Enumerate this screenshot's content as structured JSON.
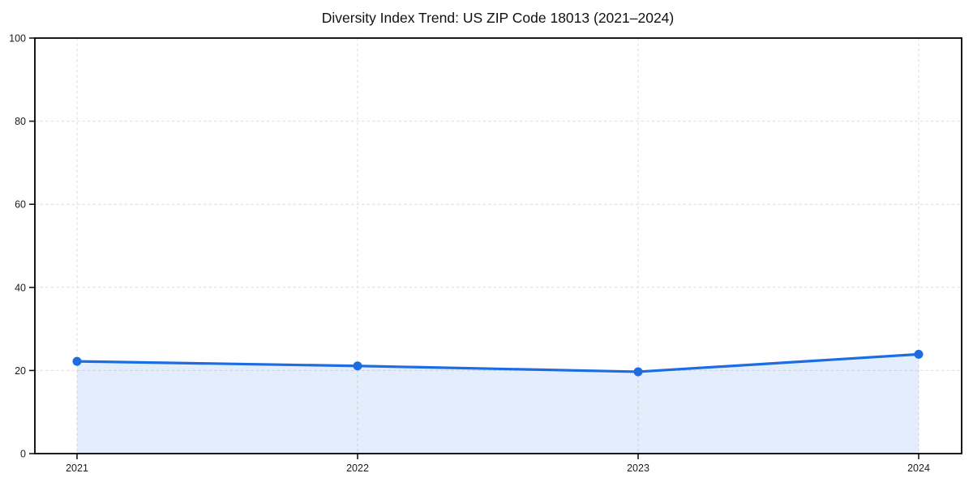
{
  "chart_data": {
    "type": "line",
    "title": "Diversity Index Trend: US ZIP Code 18013 (2021–2024)",
    "x": [
      2021,
      2022,
      2023,
      2024
    ],
    "x_tick_labels": [
      "2021",
      "2022",
      "2023",
      "2024"
    ],
    "series": [
      {
        "name": "Diversity Index",
        "values": [
          22.2,
          21.1,
          19.7,
          23.9
        ]
      }
    ],
    "xlabel": "",
    "ylabel": "",
    "ylim": [
      0,
      100
    ],
    "y_ticks": [
      0,
      20,
      40,
      60,
      80,
      100
    ],
    "y_tick_labels": [
      "0",
      "20",
      "40",
      "60",
      "80",
      "100"
    ],
    "grid": "dashed",
    "legend_position": "none",
    "area_fill": true,
    "colors": {
      "line": "#1d6ce2",
      "marker": "#1d6ce2",
      "area_fill": "rgba(29,108,226,0.12)",
      "grid": "#dedede",
      "spine": "#000000",
      "tick": "#1a1a1a",
      "background": "#ffffff"
    }
  }
}
